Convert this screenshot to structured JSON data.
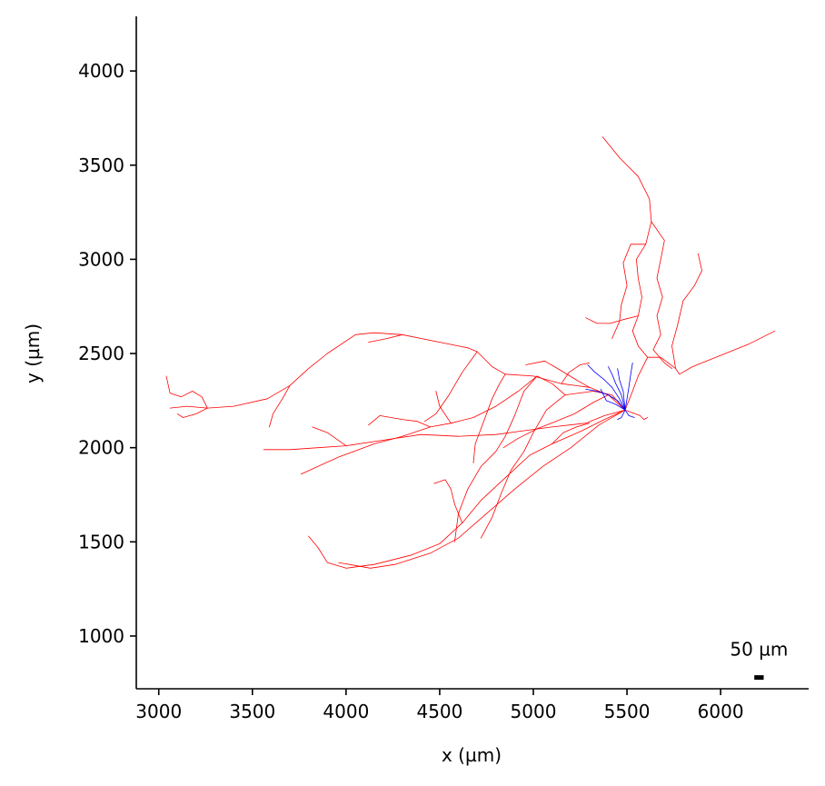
{
  "chart_data": {
    "type": "line",
    "title": "",
    "xlabel": "x (µm)",
    "ylabel": "y (µm)",
    "xlim": [
      2880,
      6470
    ],
    "ylim": [
      720,
      4290
    ],
    "x_ticks": [
      3000,
      3500,
      4000,
      4500,
      5000,
      5500,
      6000
    ],
    "y_ticks": [
      1000,
      1500,
      2000,
      2500,
      3000,
      3500,
      4000
    ],
    "x_tick_labels": [
      "3000",
      "3500",
      "4000",
      "4500",
      "5000",
      "5500",
      "6000"
    ],
    "y_tick_labels": [
      "1000",
      "1500",
      "2000",
      "2500",
      "3000",
      "3500",
      "4000"
    ],
    "grid": false,
    "scale_bar": {
      "label": "50 µm",
      "length": 50,
      "x": 6180,
      "y": 780
    },
    "colors": {
      "axon": "#ff0000",
      "dendrite": "#0000ff"
    },
    "series": [
      {
        "color": "#ff0000",
        "role": "axon",
        "paths": [
          [
            [
              5490,
              2200
            ],
            [
              5400,
              2280
            ],
            [
              5300,
              2320
            ],
            [
              5150,
              2340
            ],
            [
              5000,
              2380
            ],
            [
              4850,
              2390
            ],
            [
              4780,
              2430
            ],
            [
              4700,
              2510
            ],
            [
              4650,
              2530
            ],
            [
              4500,
              2560
            ],
            [
              4300,
              2600
            ],
            [
              4150,
              2610
            ],
            [
              4050,
              2600
            ],
            [
              3900,
              2500
            ],
            [
              3800,
              2420
            ],
            [
              3700,
              2330
            ],
            [
              3580,
              2260
            ],
            [
              3400,
              2220
            ],
            [
              3260,
              2210
            ],
            [
              3150,
              2220
            ],
            [
              3060,
              2210
            ]
          ],
          [
            [
              3260,
              2210
            ],
            [
              3230,
              2270
            ],
            [
              3180,
              2300
            ],
            [
              3120,
              2270
            ],
            [
              3060,
              2290
            ],
            [
              3040,
              2380
            ]
          ],
          [
            [
              3260,
              2210
            ],
            [
              3200,
              2180
            ],
            [
              3130,
              2160
            ],
            [
              3100,
              2180
            ]
          ],
          [
            [
              5490,
              2200
            ],
            [
              5380,
              2170
            ],
            [
              5280,
              2130
            ],
            [
              5100,
              2110
            ],
            [
              4950,
              2090
            ],
            [
              4800,
              2070
            ],
            [
              4600,
              2060
            ],
            [
              4400,
              2070
            ],
            [
              4200,
              2040
            ],
            [
              4000,
              2010
            ],
            [
              3850,
              2000
            ],
            [
              3700,
              1990
            ],
            [
              3560,
              1990
            ]
          ],
          [
            [
              5490,
              2200
            ],
            [
              5380,
              2150
            ],
            [
              5260,
              2090
            ],
            [
              5100,
              2020
            ],
            [
              4980,
              1960
            ],
            [
              4850,
              1840
            ],
            [
              4720,
              1720
            ],
            [
              4620,
              1600
            ],
            [
              4500,
              1490
            ],
            [
              4350,
              1430
            ],
            [
              4150,
              1380
            ],
            [
              4000,
              1360
            ],
            [
              3900,
              1390
            ],
            [
              3850,
              1470
            ],
            [
              3800,
              1530
            ]
          ],
          [
            [
              5490,
              2200
            ],
            [
              5350,
              2120
            ],
            [
              5200,
              2000
            ],
            [
              5050,
              1900
            ],
            [
              4900,
              1780
            ],
            [
              4750,
              1650
            ],
            [
              4600,
              1520
            ],
            [
              4450,
              1440
            ],
            [
              4260,
              1380
            ],
            [
              4130,
              1360
            ],
            [
              3960,
              1390
            ]
          ],
          [
            [
              5490,
              2200
            ],
            [
              5420,
              2280
            ],
            [
              5320,
              2300
            ],
            [
              5170,
              2280
            ],
            [
              5070,
              2200
            ],
            [
              5000,
              2080
            ],
            [
              4950,
              1980
            ],
            [
              4880,
              1880
            ],
            [
              4830,
              1760
            ],
            [
              4780,
              1630
            ],
            [
              4720,
              1520
            ]
          ],
          [
            [
              5170,
              2280
            ],
            [
              5100,
              2340
            ],
            [
              5020,
              2380
            ],
            [
              4950,
              2300
            ],
            [
              4900,
              2170
            ],
            [
              4850,
              2060
            ],
            [
              4800,
              1980
            ],
            [
              4720,
              1900
            ],
            [
              4650,
              1780
            ],
            [
              4600,
              1650
            ],
            [
              4580,
              1500
            ]
          ],
          [
            [
              5020,
              2380
            ],
            [
              4920,
              2300
            ],
            [
              4800,
              2220
            ],
            [
              4680,
              2160
            ],
            [
              4560,
              2130
            ],
            [
              4450,
              2110
            ],
            [
              4300,
              2060
            ],
            [
              4150,
              2020
            ],
            [
              3960,
              1950
            ],
            [
              3760,
              1860
            ]
          ],
          [
            [
              4450,
              2110
            ],
            [
              4380,
              2140
            ],
            [
              4300,
              2150
            ],
            [
              4180,
              2170
            ],
            [
              4120,
              2120
            ]
          ],
          [
            [
              4560,
              2130
            ],
            [
              4500,
              2220
            ],
            [
              4480,
              2300
            ]
          ],
          [
            [
              4700,
              2510
            ],
            [
              4620,
              2400
            ],
            [
              4550,
              2280
            ],
            [
              4480,
              2180
            ],
            [
              4420,
              2140
            ]
          ],
          [
            [
              5300,
              2320
            ],
            [
              5230,
              2360
            ],
            [
              5130,
              2420
            ],
            [
              5060,
              2460
            ],
            [
              4960,
              2440
            ]
          ],
          [
            [
              5490,
              2200
            ],
            [
              5530,
              2300
            ],
            [
              5560,
              2380
            ],
            [
              5610,
              2480
            ],
            [
              5560,
              2540
            ],
            [
              5530,
              2620
            ],
            [
              5560,
              2700
            ],
            [
              5580,
              2800
            ],
            [
              5560,
              2900
            ],
            [
              5550,
              3000
            ],
            [
              5600,
              3080
            ],
            [
              5630,
              3200
            ],
            [
              5620,
              3320
            ],
            [
              5560,
              3440
            ],
            [
              5460,
              3540
            ],
            [
              5370,
              3650
            ]
          ],
          [
            [
              5630,
              3200
            ],
            [
              5700,
              3100
            ],
            [
              5680,
              3000
            ],
            [
              5660,
              2900
            ],
            [
              5690,
              2800
            ],
            [
              5660,
              2700
            ],
            [
              5680,
              2600
            ],
            [
              5640,
              2520
            ],
            [
              5700,
              2450
            ],
            [
              5740,
              2420
            ]
          ],
          [
            [
              5600,
              3080
            ],
            [
              5520,
              3080
            ],
            [
              5480,
              2980
            ],
            [
              5500,
              2860
            ],
            [
              5470,
              2760
            ],
            [
              5460,
              2670
            ],
            [
              5420,
              2580
            ]
          ],
          [
            [
              5490,
              2200
            ],
            [
              5570,
              2170
            ],
            [
              5590,
              2150
            ],
            [
              5610,
              2160
            ]
          ],
          [
            [
              5610,
              2480
            ],
            [
              5680,
              2480
            ],
            [
              5760,
              2420
            ],
            [
              5780,
              2390
            ],
            [
              5850,
              2430
            ],
            [
              5950,
              2470
            ],
            [
              6050,
              2510
            ],
            [
              6150,
              2550
            ],
            [
              6250,
              2600
            ],
            [
              6290,
              2620
            ]
          ],
          [
            [
              5760,
              2420
            ],
            [
              5740,
              2540
            ],
            [
              5770,
              2650
            ],
            [
              5800,
              2780
            ],
            [
              5860,
              2860
            ],
            [
              5900,
              2940
            ],
            [
              5880,
              3030
            ]
          ],
          [
            [
              5560,
              2700
            ],
            [
              5480,
              2680
            ],
            [
              5410,
              2660
            ],
            [
              5340,
              2660
            ],
            [
              5280,
              2690
            ]
          ],
          [
            [
              5400,
              2280
            ],
            [
              5320,
              2240
            ],
            [
              5220,
              2180
            ],
            [
              5120,
              2140
            ],
            [
              5020,
              2100
            ],
            [
              4920,
              2050
            ],
            [
              4840,
              2000
            ]
          ],
          [
            [
              4850,
              2390
            ],
            [
              4820,
              2340
            ],
            [
              4780,
              2260
            ],
            [
              4750,
              2180
            ],
            [
              4720,
              2100
            ],
            [
              4690,
              2020
            ],
            [
              4680,
              1920
            ]
          ],
          [
            [
              3700,
              2330
            ],
            [
              3660,
              2260
            ],
            [
              3610,
              2180
            ],
            [
              3590,
              2110
            ]
          ],
          [
            [
              4000,
              2010
            ],
            [
              3900,
              2080
            ],
            [
              3820,
              2110
            ]
          ],
          [
            [
              4620,
              1600
            ],
            [
              4580,
              1700
            ],
            [
              4560,
              1780
            ],
            [
              4530,
              1830
            ],
            [
              4470,
              1810
            ]
          ],
          [
            [
              5100,
              2020
            ],
            [
              5160,
              2080
            ],
            [
              5230,
              2110
            ],
            [
              5300,
              2130
            ]
          ],
          [
            [
              4300,
              2600
            ],
            [
              4220,
              2580
            ],
            [
              4120,
              2560
            ]
          ],
          [
            [
              5150,
              2340
            ],
            [
              5190,
              2400
            ],
            [
              5250,
              2440
            ],
            [
              5300,
              2450
            ]
          ]
        ]
      },
      {
        "color": "#0000ff",
        "role": "dendrite",
        "paths": [
          [
            [
              5490,
              2200
            ],
            [
              5460,
              2260
            ],
            [
              5420,
              2320
            ],
            [
              5380,
              2360
            ],
            [
              5330,
              2400
            ],
            [
              5290,
              2440
            ]
          ],
          [
            [
              5490,
              2200
            ],
            [
              5470,
              2280
            ],
            [
              5440,
              2340
            ],
            [
              5420,
              2390
            ],
            [
              5400,
              2430
            ]
          ],
          [
            [
              5490,
              2200
            ],
            [
              5500,
              2260
            ],
            [
              5510,
              2320
            ],
            [
              5520,
              2390
            ],
            [
              5530,
              2450
            ]
          ],
          [
            [
              5490,
              2200
            ],
            [
              5450,
              2250
            ],
            [
              5400,
              2280
            ],
            [
              5340,
              2300
            ],
            [
              5280,
              2310
            ]
          ],
          [
            [
              5490,
              2200
            ],
            [
              5480,
              2300
            ],
            [
              5460,
              2360
            ],
            [
              5450,
              2420
            ]
          ],
          [
            [
              5490,
              2200
            ],
            [
              5440,
              2230
            ],
            [
              5390,
              2250
            ],
            [
              5360,
              2310
            ]
          ],
          [
            [
              5490,
              2200
            ],
            [
              5470,
              2160
            ],
            [
              5450,
              2150
            ]
          ],
          [
            [
              5490,
              2200
            ],
            [
              5510,
              2170
            ],
            [
              5540,
              2160
            ]
          ]
        ]
      }
    ]
  }
}
